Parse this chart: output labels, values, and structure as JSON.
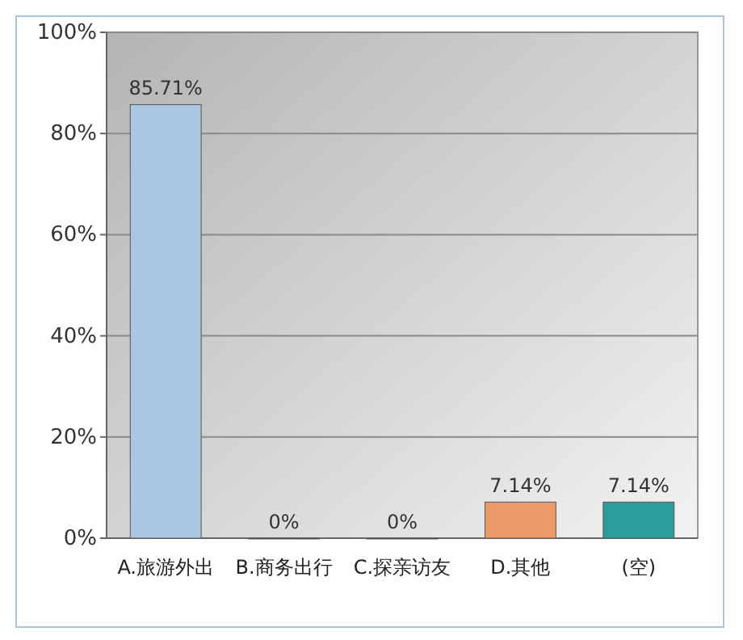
{
  "chart_data": {
    "type": "bar",
    "categories": [
      "A.旅游外出",
      "B.商务出行",
      "C.探亲访友",
      "D.其他",
      "(空)"
    ],
    "values": [
      85.71,
      0,
      0,
      7.14,
      7.14
    ],
    "value_labels": [
      "85.71%",
      "0%",
      "0%",
      "7.14%",
      "7.14%"
    ],
    "colors": [
      "#a9c6e2",
      "#e8b94c",
      "#93bf3e",
      "#eb9a68",
      "#2b9e9b"
    ],
    "ylim": [
      0,
      100
    ],
    "yticks": [
      {
        "value": 0,
        "label": "0%"
      },
      {
        "value": 20,
        "label": "20%"
      },
      {
        "value": 40,
        "label": "40%"
      },
      {
        "value": 60,
        "label": "60%"
      },
      {
        "value": 80,
        "label": "80%"
      },
      {
        "value": 100,
        "label": "100%"
      }
    ],
    "grid": "y"
  }
}
